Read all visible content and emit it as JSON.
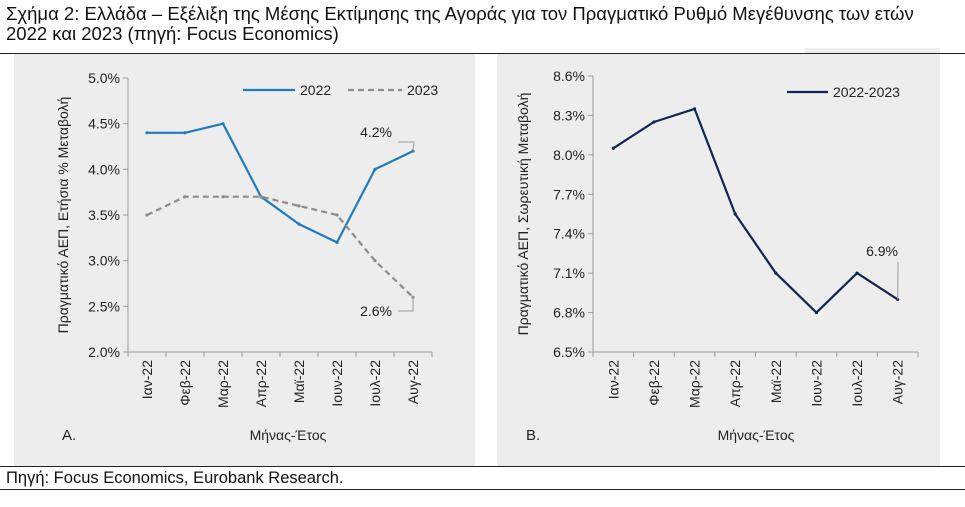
{
  "figure": {
    "title": "Σχήμα 2: Ελλάδα – Εξέλιξη της Μέσης Εκτίμησης της Αγοράς για τον Πραγματικό Ρυθμό Μεγέθυνσης των ετών 2022 και 2023 (πηγή: Focus Economics)",
    "source": "Πηγή: Focus Economics, Eurobank Research."
  },
  "colors": {
    "series_2022": "#1f7bbf",
    "series_2023": "#8c8c8c",
    "series_2022_2023": "#0f2654",
    "panel_background": "#ededed"
  },
  "chart_data": [
    {
      "type": "line",
      "panel_label": "A.",
      "categories": [
        "Ιαν-22",
        "Φεβ-22",
        "Μαρ-22",
        "Απρ-22",
        "Μαϊ-22",
        "Ιουν-22",
        "Ιουλ-22",
        "Αυγ-22"
      ],
      "series": [
        {
          "name": "2022",
          "values": [
            4.4,
            4.4,
            4.5,
            3.7,
            3.4,
            3.2,
            4.0,
            4.2
          ],
          "style": "solid"
        },
        {
          "name": "2023",
          "values": [
            3.5,
            3.7,
            3.7,
            3.7,
            3.6,
            3.5,
            3.0,
            2.6
          ],
          "style": "dashed"
        }
      ],
      "xlabel": "Μήνας-Έτος",
      "ylabel": "Πραγματικό ΑΕΠ, Ετήσια % Μεταβολή",
      "ylim": [
        2.0,
        5.0
      ],
      "yticks": [
        "2.0%",
        "2.5%",
        "3.0%",
        "3.5%",
        "4.0%",
        "4.5%",
        "5.0%"
      ],
      "legend": "top-right",
      "annotations": [
        {
          "text": "4.2%",
          "series": "2022",
          "index": 7
        },
        {
          "text": "2.6%",
          "series": "2023",
          "index": 7
        }
      ],
      "grid": false
    },
    {
      "type": "line",
      "panel_label": "B.",
      "categories": [
        "Ιαν-22",
        "Φεβ-22",
        "Μαρ-22",
        "Απρ-22",
        "Μαϊ-22",
        "Ιουν-22",
        "Ιουλ-22",
        "Αυγ-22"
      ],
      "series": [
        {
          "name": "2022-2023",
          "values": [
            8.05,
            8.25,
            8.35,
            7.55,
            7.1,
            6.8,
            7.1,
            6.9
          ],
          "style": "solid"
        }
      ],
      "xlabel": "Μήνας-Έτος",
      "ylabel": "Πραγματικό ΑΕΠ, Σωρευτική Μεταβολή",
      "ylim": [
        6.5,
        8.6
      ],
      "yticks": [
        "6.5%",
        "6.8%",
        "7.1%",
        "7.4%",
        "7.7%",
        "8.0%",
        "8.3%",
        "8.6%"
      ],
      "legend": "top-right",
      "annotations": [
        {
          "text": "6.9%",
          "series": "2022-2023",
          "index": 7
        }
      ],
      "grid": false
    }
  ]
}
